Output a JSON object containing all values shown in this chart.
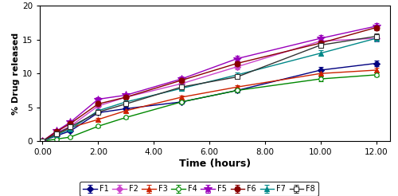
{
  "time": [
    0,
    0.5,
    1.0,
    2.0,
    3.0,
    5.0,
    7.0,
    10.0,
    12.0
  ],
  "series": {
    "F1": {
      "values": [
        0,
        0.8,
        1.5,
        4.2,
        4.8,
        5.8,
        7.5,
        10.5,
        11.5
      ],
      "errors": [
        0,
        0.1,
        0.15,
        0.2,
        0.2,
        0.2,
        0.25,
        0.5,
        0.4
      ],
      "color": "#000080",
      "marker": "D",
      "markersize": 4,
      "mfc": "#000080"
    },
    "F2": {
      "values": [
        0,
        1.2,
        2.2,
        5.2,
        6.5,
        8.5,
        11.0,
        14.8,
        15.2
      ],
      "errors": [
        0,
        0.15,
        0.2,
        0.25,
        0.25,
        0.3,
        0.35,
        0.4,
        0.4
      ],
      "color": "#CC44CC",
      "marker": "D",
      "markersize": 4,
      "mfc": "#CC44CC"
    },
    "F3": {
      "values": [
        0,
        1.0,
        2.0,
        3.2,
        4.5,
        6.5,
        8.0,
        10.0,
        10.5
      ],
      "errors": [
        0,
        0.15,
        0.15,
        0.2,
        0.2,
        0.25,
        0.3,
        0.35,
        0.35
      ],
      "color": "#CC2200",
      "marker": "^",
      "markersize": 5,
      "mfc": "#CC2200"
    },
    "F4": {
      "values": [
        0,
        0.3,
        0.6,
        2.2,
        3.5,
        5.8,
        7.5,
        9.2,
        9.8
      ],
      "errors": [
        0,
        0.1,
        0.1,
        0.15,
        0.2,
        0.25,
        0.25,
        0.3,
        0.3
      ],
      "color": "#008800",
      "marker": "o",
      "markersize": 4,
      "mfc": "white"
    },
    "F5": {
      "values": [
        0,
        1.5,
        2.8,
        6.2,
        6.8,
        9.2,
        12.2,
        15.2,
        17.0
      ],
      "errors": [
        0,
        0.2,
        0.25,
        0.3,
        0.3,
        0.35,
        0.45,
        0.5,
        0.5
      ],
      "color": "#9900BB",
      "marker": "*",
      "markersize": 7,
      "mfc": "#9900BB"
    },
    "F6": {
      "values": [
        0,
        1.4,
        2.6,
        5.5,
        6.5,
        9.0,
        11.5,
        14.5,
        16.8
      ],
      "errors": [
        0,
        0.15,
        0.2,
        0.25,
        0.25,
        0.3,
        0.35,
        0.4,
        0.45
      ],
      "color": "#880000",
      "marker": "o",
      "markersize": 5,
      "mfc": "#880000"
    },
    "F7": {
      "values": [
        0,
        0.9,
        1.8,
        4.5,
        5.8,
        7.8,
        9.8,
        13.0,
        15.2
      ],
      "errors": [
        0,
        0.15,
        0.2,
        0.25,
        0.25,
        0.3,
        0.35,
        0.4,
        0.45
      ],
      "color": "#008888",
      "marker": "^",
      "markersize": 5,
      "mfc": "#008888"
    },
    "F8": {
      "values": [
        0,
        1.1,
        2.1,
        4.3,
        5.5,
        8.0,
        9.5,
        14.2,
        15.5
      ],
      "errors": [
        0,
        0.15,
        0.2,
        0.25,
        0.25,
        0.3,
        0.35,
        0.45,
        0.45
      ],
      "color": "#333333",
      "marker": "s",
      "markersize": 4,
      "mfc": "white"
    }
  },
  "xlabel": "Time (hours)",
  "ylabel": "% Drug released",
  "xlim": [
    -0.1,
    12.5
  ],
  "ylim": [
    0,
    20
  ],
  "xticks": [
    0.0,
    2.0,
    4.0,
    6.0,
    8.0,
    10.0,
    12.0
  ],
  "yticks": [
    0,
    5,
    10,
    15,
    20
  ],
  "legend_order": [
    "F1",
    "F2",
    "F3",
    "F4",
    "F5",
    "F6",
    "F7",
    "F8"
  ]
}
